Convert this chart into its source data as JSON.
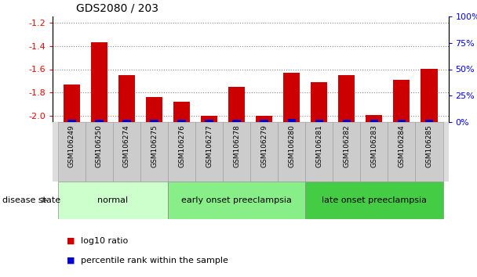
{
  "title": "GDS2080 / 203",
  "samples": [
    "GSM106249",
    "GSM106250",
    "GSM106274",
    "GSM106275",
    "GSM106276",
    "GSM106277",
    "GSM106278",
    "GSM106279",
    "GSM106280",
    "GSM106281",
    "GSM106282",
    "GSM106283",
    "GSM106284",
    "GSM106285"
  ],
  "log10_ratio": [
    -1.73,
    -1.37,
    -1.65,
    -1.84,
    -1.88,
    -2.0,
    -1.75,
    -2.0,
    -1.63,
    -1.71,
    -1.65,
    -1.99,
    -1.69,
    -1.6
  ],
  "percentile_rank": [
    2,
    2,
    2,
    2,
    2,
    2,
    2,
    2,
    3,
    2,
    2,
    2,
    2,
    2
  ],
  "bar_color": "#cc0000",
  "percentile_color": "#0000cc",
  "ylim_left": [
    -2.05,
    -1.15
  ],
  "ylim_right": [
    0,
    100
  ],
  "yticks_left": [
    -2.0,
    -1.8,
    -1.6,
    -1.4,
    -1.2
  ],
  "yticks_right": [
    0,
    25,
    50,
    75,
    100
  ],
  "groups": [
    {
      "label": "normal",
      "start": 0,
      "end": 3,
      "color": "#ccffcc"
    },
    {
      "label": "early onset preeclampsia",
      "start": 4,
      "end": 8,
      "color": "#88ee88"
    },
    {
      "label": "late onset preeclampsia",
      "start": 9,
      "end": 13,
      "color": "#44cc44"
    }
  ],
  "disease_state_label": "disease state",
  "legend_red_label": "log10 ratio",
  "legend_blue_label": "percentile rank within the sample",
  "grid_color": "#888888",
  "xticklabel_bg": "#cccccc",
  "bar_width": 0.6
}
